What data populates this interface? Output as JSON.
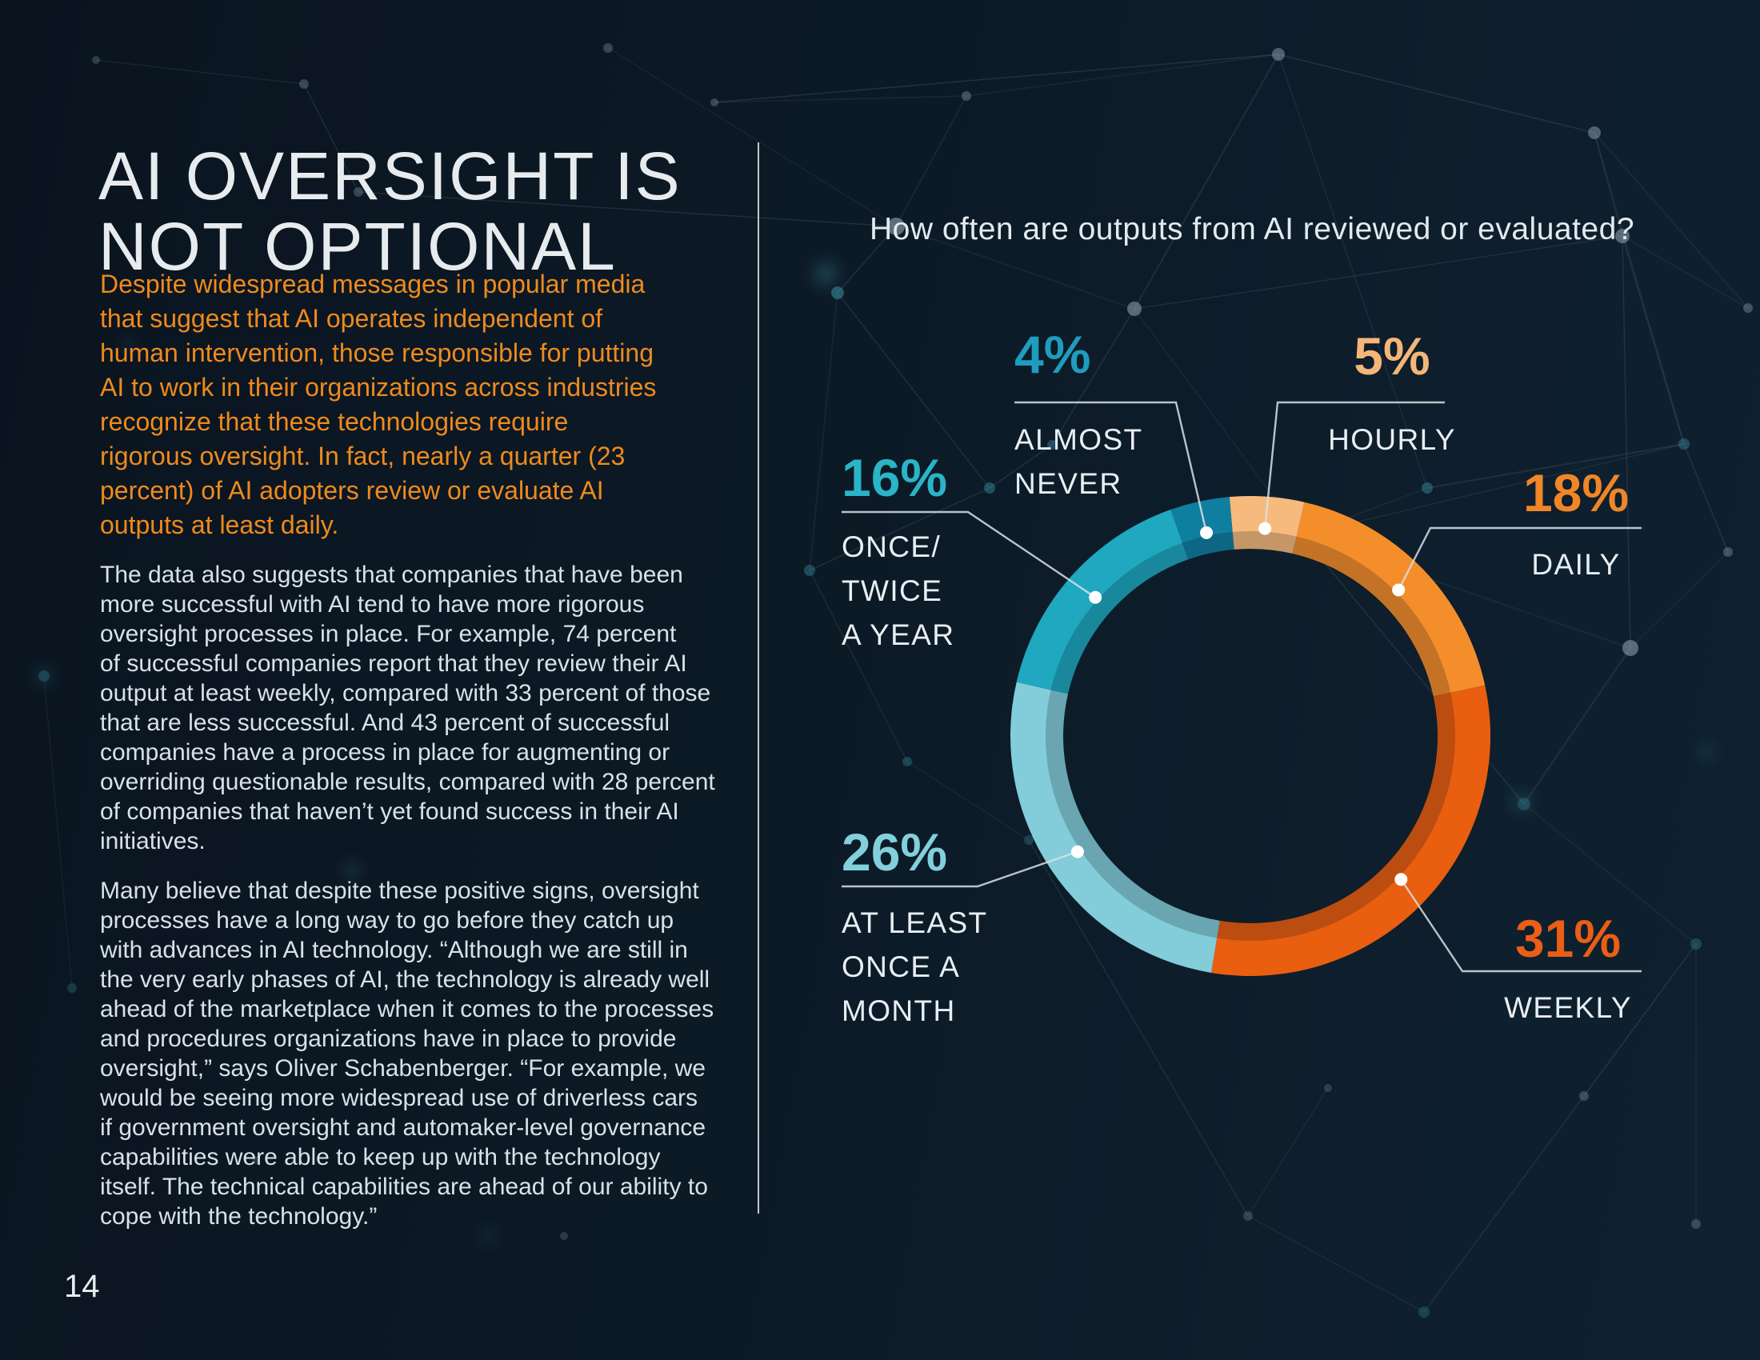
{
  "page": {
    "number": "14",
    "background_color": "#0c1926",
    "accent_orange": "#ee8a1d",
    "divider_color": "#d6dce1"
  },
  "article": {
    "title_lines": [
      "AI OVERSIGHT IS",
      "NOT OPTIONAL"
    ],
    "lead_lines": [
      "Despite widespread messages in popular media",
      "that suggest that AI operates independent of",
      "human intervention, those responsible for putting",
      "AI to work in their organizations across industries",
      "recognize that these technologies require",
      "rigorous oversight. In fact, nearly a quarter (23",
      "percent) of AI adopters review or evaluate AI",
      "outputs at least daily."
    ],
    "paragraph1_lines": [
      "The data also suggests that companies that have been",
      "more successful with AI tend to have more rigorous",
      "oversight processes in place. For example, 74 percent",
      "of successful companies report that they review their AI",
      "output at least weekly, compared with 33 percent of those",
      "that are less successful. And 43 percent of successful",
      "companies have a process in place for augmenting or",
      "overriding questionable results, compared with 28 percent",
      "of companies that haven’t yet found success in their AI",
      "initiatives."
    ],
    "paragraph2_lines": [
      "Many believe that despite these positive signs, oversight",
      "processes have a long way to go before they catch up",
      "with advances in AI technology. “Although we are still in",
      "the very early phases of AI, the technology is already well",
      "ahead of the marketplace when it comes to the processes",
      "and procedures organizations have in place to provide",
      "oversight,” says Oliver Schabenberger. “For example, we",
      "would be seeing more widespread use of driverless cars",
      "if government oversight and automaker-level governance",
      "capabilities were able to keep up with the technology",
      "itself. The technical capabilities are ahead of our ability to",
      "cope with the technology.”"
    ]
  },
  "chart": {
    "title": "How often are outputs from AI reviewed or evaluated?",
    "slices": [
      {
        "pct": "5%",
        "value": 5,
        "label_lines": [
          "HOURLY"
        ],
        "color": "#f6ba7d",
        "num_color": "#f4b679"
      },
      {
        "pct": "18%",
        "value": 18,
        "label_lines": [
          "DAILY"
        ],
        "color": "#f48e2b",
        "num_color": "#f08627"
      },
      {
        "pct": "31%",
        "value": 31,
        "label_lines": [
          "WEEKLY"
        ],
        "color": "#e95e0f",
        "num_color": "#ea5e15"
      },
      {
        "pct": "26%",
        "value": 26,
        "label_lines": [
          "AT LEAST",
          "ONCE A",
          "MONTH"
        ],
        "color": "#82cdd9",
        "num_color": "#81d0dc"
      },
      {
        "pct": "16%",
        "value": 16,
        "label_lines": [
          "ONCE/",
          "TWICE",
          "A YEAR"
        ],
        "color": "#1fa8bf",
        "num_color": "#2ab4c7"
      },
      {
        "pct": "4%",
        "value": 4,
        "label_lines": [
          "ALMOST",
          "NEVER"
        ],
        "color": "#0f7fa0",
        "num_color": "#1f9cbe"
      }
    ]
  },
  "chart_data": {
    "type": "pie",
    "subtype": "donut",
    "title": "How often are outputs from AI reviewed or evaluated?",
    "categories": [
      "HOURLY",
      "DAILY",
      "WEEKLY",
      "AT LEAST ONCE A MONTH",
      "ONCE/TWICE A YEAR",
      "ALMOST NEVER"
    ],
    "values": [
      5,
      18,
      31,
      26,
      16,
      4
    ],
    "unit": "percent",
    "colors": [
      "#f6ba7d",
      "#f48e2b",
      "#e95e0f",
      "#82cdd9",
      "#1fa8bf",
      "#0f7fa0"
    ],
    "start_angle_deg": -5,
    "clockwise": true,
    "legend_position": "callouts-around-donut"
  }
}
